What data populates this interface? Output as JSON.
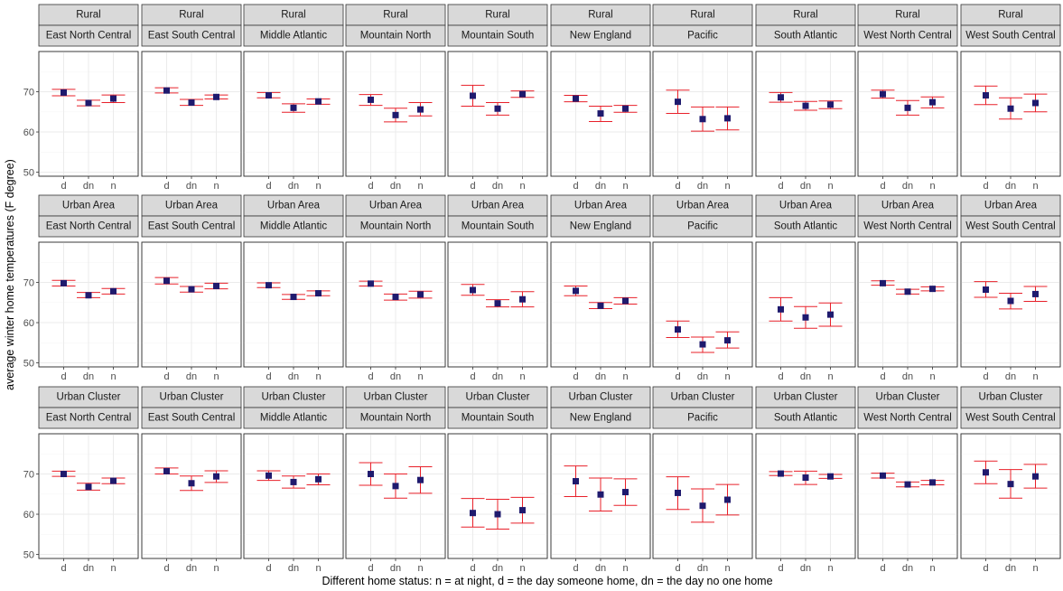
{
  "chart_data": {
    "type": "errorbar",
    "xlabel": "Different home status: n = at night, d = the day someone home, dn = the day no one home",
    "ylabel": "average winter home temperatures (F degree)",
    "x_categories": [
      "d",
      "dn",
      "n"
    ],
    "y_ticks": [
      50,
      60,
      70
    ],
    "ylim": [
      49,
      80
    ],
    "grid": true,
    "colors": {
      "point": "#1f1a6e",
      "errorbar": "#e8202a",
      "strip": "#d9d9d9"
    },
    "row_strips": [
      "Rural",
      "Urban Area",
      "Urban Cluster"
    ],
    "col_strips": [
      "East North Central",
      "East South Central",
      "Middle Atlantic",
      "Mountain North",
      "Mountain South",
      "New England",
      "Pacific",
      "South Atlantic",
      "West North Central",
      "West South Central"
    ],
    "panels": [
      [
        [
          [
            69.8,
            69.0,
            70.6
          ],
          [
            67.2,
            66.5,
            67.9
          ],
          [
            68.3,
            67.3,
            69.2
          ]
        ],
        [
          [
            70.3,
            69.7,
            71.0
          ],
          [
            67.3,
            66.6,
            68.1
          ],
          [
            68.7,
            68.2,
            69.2
          ]
        ],
        [
          [
            69.1,
            68.5,
            69.8
          ],
          [
            66.0,
            64.9,
            67.0
          ],
          [
            67.6,
            66.9,
            68.2
          ]
        ],
        [
          [
            68.0,
            66.6,
            69.3
          ],
          [
            64.2,
            62.5,
            65.9
          ],
          [
            65.6,
            64.0,
            67.3
          ]
        ],
        [
          [
            69.0,
            66.4,
            71.6
          ],
          [
            65.8,
            64.2,
            67.3
          ],
          [
            69.4,
            68.6,
            70.2
          ]
        ],
        [
          [
            68.3,
            67.5,
            69.1
          ],
          [
            64.6,
            62.6,
            66.4
          ],
          [
            65.8,
            64.9,
            66.6
          ]
        ],
        [
          [
            67.5,
            64.6,
            70.4
          ],
          [
            63.2,
            60.2,
            66.2
          ],
          [
            63.4,
            60.5,
            66.2
          ]
        ],
        [
          [
            68.6,
            67.4,
            69.8
          ],
          [
            66.5,
            65.4,
            67.6
          ],
          [
            66.8,
            65.8,
            67.7
          ]
        ],
        [
          [
            69.4,
            68.4,
            70.4
          ],
          [
            66.0,
            64.2,
            67.8
          ],
          [
            67.4,
            66.0,
            68.7
          ]
        ],
        [
          [
            69.1,
            66.8,
            71.4
          ],
          [
            65.8,
            63.2,
            68.5
          ],
          [
            67.2,
            65.0,
            69.4
          ]
        ]
      ],
      [
        [
          [
            69.8,
            69.1,
            70.5
          ],
          [
            66.8,
            66.2,
            67.5
          ],
          [
            67.8,
            67.1,
            68.5
          ]
        ],
        [
          [
            70.4,
            69.6,
            71.2
          ],
          [
            68.3,
            67.6,
            69.0
          ],
          [
            69.1,
            68.4,
            69.8
          ]
        ],
        [
          [
            69.3,
            68.7,
            69.9
          ],
          [
            66.4,
            65.8,
            67.0
          ],
          [
            67.3,
            66.7,
            67.9
          ]
        ],
        [
          [
            69.7,
            69.1,
            70.3
          ],
          [
            66.4,
            65.6,
            67.1
          ],
          [
            67.0,
            66.1,
            67.8
          ]
        ],
        [
          [
            68.1,
            66.8,
            69.5
          ],
          [
            64.8,
            63.9,
            65.7
          ],
          [
            65.8,
            63.9,
            67.7
          ]
        ],
        [
          [
            67.9,
            66.7,
            69.1
          ],
          [
            64.2,
            63.5,
            65.0
          ],
          [
            65.4,
            64.6,
            66.2
          ]
        ],
        [
          [
            58.3,
            56.3,
            60.4
          ],
          [
            54.6,
            52.6,
            56.4
          ],
          [
            55.6,
            53.7,
            57.7
          ]
        ],
        [
          [
            63.3,
            60.4,
            66.2
          ],
          [
            61.3,
            58.6,
            64.0
          ],
          [
            62.0,
            59.1,
            64.9
          ]
        ],
        [
          [
            69.8,
            69.3,
            70.4
          ],
          [
            67.7,
            67.1,
            68.3
          ],
          [
            68.4,
            67.9,
            68.9
          ]
        ],
        [
          [
            68.2,
            66.3,
            70.2
          ],
          [
            65.4,
            63.4,
            67.3
          ],
          [
            67.1,
            65.3,
            69.0
          ]
        ]
      ],
      [
        [
          [
            70.0,
            69.4,
            70.7
          ],
          [
            66.8,
            66.0,
            67.7
          ],
          [
            68.3,
            67.6,
            69.0
          ]
        ],
        [
          [
            70.7,
            70.0,
            71.5
          ],
          [
            67.7,
            65.9,
            69.5
          ],
          [
            69.4,
            67.9,
            70.8
          ]
        ],
        [
          [
            69.6,
            68.4,
            70.8
          ],
          [
            68.0,
            66.5,
            69.5
          ],
          [
            68.7,
            67.3,
            70.0
          ]
        ],
        [
          [
            70.0,
            67.2,
            72.8
          ],
          [
            67.0,
            64.0,
            70.0
          ],
          [
            68.5,
            65.2,
            71.8
          ]
        ],
        [
          [
            60.3,
            56.8,
            63.9
          ],
          [
            60.0,
            56.3,
            63.7
          ],
          [
            61.0,
            57.8,
            64.2
          ]
        ],
        [
          [
            68.2,
            64.4,
            72.0
          ],
          [
            64.9,
            60.8,
            69.0
          ],
          [
            65.5,
            62.2,
            68.8
          ]
        ],
        [
          [
            65.3,
            61.2,
            69.3
          ],
          [
            62.1,
            58.0,
            66.3
          ],
          [
            63.6,
            59.8,
            67.4
          ]
        ],
        [
          [
            70.1,
            69.6,
            70.6
          ],
          [
            69.1,
            67.4,
            70.7
          ],
          [
            69.4,
            68.9,
            69.9
          ]
        ],
        [
          [
            69.6,
            69.0,
            70.2
          ],
          [
            67.4,
            66.8,
            68.0
          ],
          [
            67.9,
            67.3,
            68.4
          ]
        ],
        [
          [
            70.4,
            67.6,
            73.2
          ],
          [
            67.5,
            64.0,
            71.1
          ],
          [
            69.4,
            66.5,
            72.4
          ]
        ]
      ]
    ]
  }
}
